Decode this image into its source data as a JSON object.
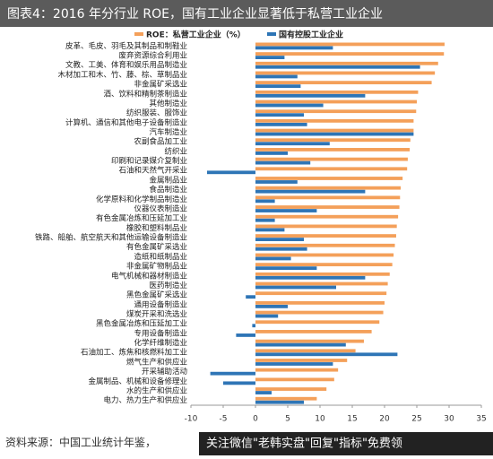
{
  "chart_data": {
    "type": "barh",
    "title": "图表4：2016 年分行业 ROE，国有工业企业显著低于私营工业企业",
    "source": "资料来源：中国工业统计年鉴，",
    "watermark": "关注微信\"老韩实盘\"回复\"指标\"免费领",
    "categories": [
      "皮革、毛皮、羽毛及其制品和制鞋业",
      "废弃资源综合利用业",
      "文教、工美、体育和娱乐用品制造业",
      "木材加工和木、竹、藤、棕、草制品业",
      "非金属矿采选业",
      "酒、饮料和精制茶制造业",
      "其他制造业",
      "纺织服装、服饰业",
      "计算机、通信和其他电子设备制造业",
      "汽车制造业",
      "农副食品加工业",
      "纺织业",
      "印刷和记录媒介复制业",
      "石油和天然气开采业",
      "金属制品业",
      "食品制造业",
      "化学原料和化学制品制造业",
      "仪器仪表制造业",
      "有色金属冶炼和压延加工业",
      "橡胶和塑料制品业",
      "铁路、船舶、航空航天和其他运输设备制造业",
      "有色金属矿采选业",
      "造纸和纸制品业",
      "非金属矿物制品业",
      "电气机械和器材制造业",
      "医药制造业",
      "黑色金属矿采选业",
      "通用设备制造业",
      "煤炭开采和洗选业",
      "黑色金属冶炼和压延加工业",
      "专用设备制造业",
      "化学纤维制造业",
      "石油加工、炼焦和核燃料加工业",
      "燃气生产和供应业",
      "开采辅助活动",
      "金属制品、机械和设备修理业",
      "水的生产和供应业",
      "电力、热力生产和供应业"
    ],
    "series": [
      {
        "name": "ROE：私营工业企业（%）",
        "color": "#f4a05a",
        "values": [
          29.3,
          29.2,
          28.3,
          27.8,
          27.3,
          25.2,
          25.0,
          24.9,
          24.5,
          24.5,
          24.0,
          23.9,
          23.6,
          23.5,
          22.8,
          22.5,
          22.4,
          22.3,
          22.1,
          21.9,
          21.8,
          21.6,
          21.4,
          21.2,
          20.8,
          20.5,
          20.3,
          20.0,
          19.8,
          19.2,
          18.0,
          16.8,
          15.5,
          14.2,
          12.8,
          12.2,
          11.0,
          9.5
        ]
      },
      {
        "name": "国有控股工业企业",
        "color": "#2e75b6",
        "values": [
          12,
          4.5,
          25.5,
          6.5,
          7,
          17,
          10.5,
          7.5,
          8,
          24.5,
          11.5,
          5,
          8.5,
          -7.5,
          6.5,
          17,
          3,
          9.5,
          3,
          4.5,
          7.5,
          8,
          5.5,
          9.5,
          17,
          12.5,
          -1.5,
          5,
          3.5,
          -0.5,
          -3,
          14,
          22,
          12,
          -7,
          -5,
          2.5,
          7.5
        ]
      }
    ],
    "xlim": [
      -10,
      35
    ],
    "xticks": [
      -10,
      -5,
      0,
      5,
      10,
      15,
      20,
      25,
      30,
      35
    ]
  }
}
